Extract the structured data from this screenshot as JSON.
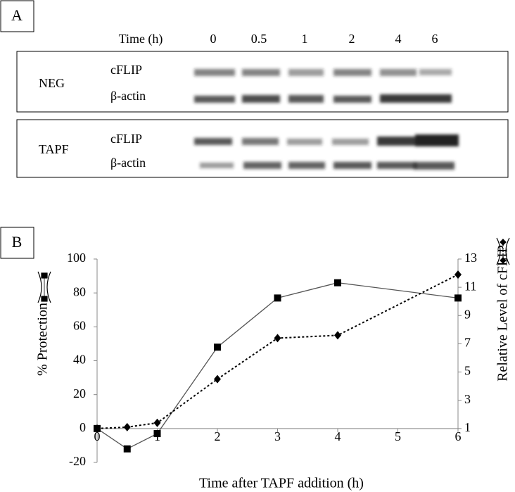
{
  "panel_a": {
    "label": "A",
    "time_label": "Time (h)",
    "times": [
      "0",
      "0.5",
      "1",
      "2",
      "4",
      "6"
    ],
    "groups": [
      {
        "name": "NEG",
        "rows": [
          "cFLIP",
          "β-actin"
        ]
      },
      {
        "name": "TAPF",
        "rows": [
          "cFLIP",
          "β-actin"
        ]
      }
    ]
  },
  "chart_data": {
    "type": "line",
    "panel_label": "B",
    "xlabel": "Time after TAPF addition (h)",
    "ylabel": "% Protection",
    "y2label": "Relative Level of cFLIP",
    "x": [
      0,
      0.5,
      1,
      2,
      3,
      4,
      6
    ],
    "xlim": [
      0,
      6
    ],
    "xticks": [
      0,
      1,
      2,
      3,
      4,
      5,
      6
    ],
    "ylim": [
      -20,
      100
    ],
    "yticks": [
      -20,
      0,
      20,
      40,
      60,
      80,
      100
    ],
    "y2lim": [
      1,
      13
    ],
    "y2ticks": [
      1,
      3,
      5,
      7,
      9,
      11,
      13
    ],
    "series": [
      {
        "color": "#555555",
        "marker": "square",
        "line": "solid",
        "axis": "y",
        "values": [
          0,
          -12,
          -3,
          48,
          77,
          86,
          77
        ]
      },
      {
        "color": "#000000",
        "marker": "diamond",
        "line": "dotted",
        "axis": "y2",
        "values": [
          1.0,
          1.1,
          1.4,
          4.5,
          7.4,
          7.6,
          11.9
        ]
      }
    ]
  }
}
